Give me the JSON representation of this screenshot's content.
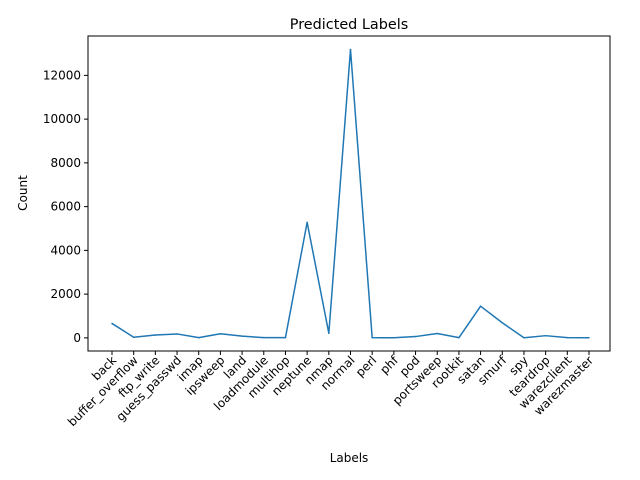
{
  "chart_data": {
    "type": "line",
    "title": "Predicted Labels",
    "xlabel": "Labels",
    "ylabel": "Count",
    "categories": [
      "back",
      "buffer_overflow",
      "ftp_write",
      "guess_passwd",
      "imap",
      "ipsweep",
      "land",
      "loadmodule",
      "multihop",
      "neptune",
      "nmap",
      "normal",
      "perl",
      "phf",
      "pod",
      "portsweep",
      "rootkit",
      "satan",
      "smurf",
      "spy",
      "teardrop",
      "warezclient",
      "warezmaster"
    ],
    "series": [
      {
        "color": "#1f77b4",
        "values": [
          660,
          30,
          130,
          180,
          10,
          190,
          80,
          10,
          10,
          5280,
          210,
          13180,
          10,
          5,
          60,
          200,
          10,
          1450,
          690,
          5,
          100,
          10,
          5
        ]
      }
    ],
    "ylim": [
      -600,
      13800
    ],
    "yticks": [
      0,
      2000,
      4000,
      6000,
      8000,
      10000,
      12000
    ],
    "grid": false
  }
}
